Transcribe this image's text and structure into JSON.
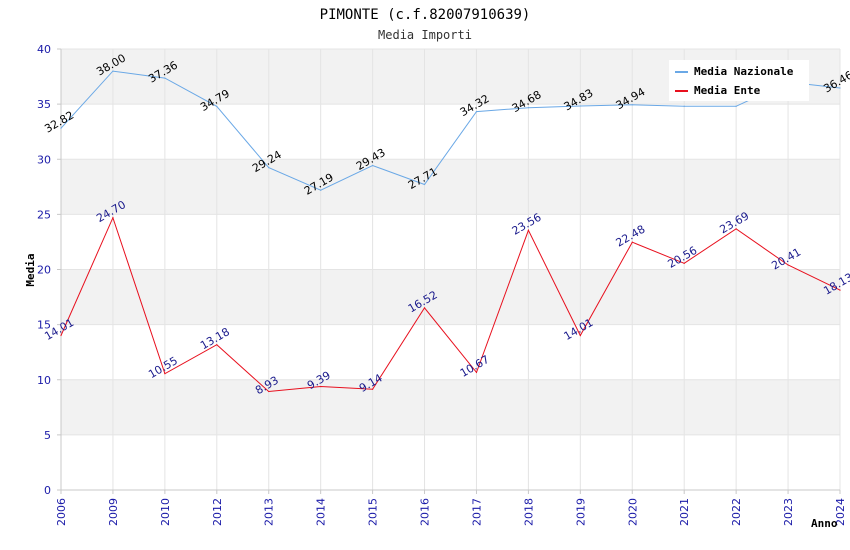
{
  "chart_data": {
    "type": "line",
    "title": "PIMONTE (c.f.82007910639)",
    "subtitle": "Media Importi",
    "xlabel": "Anno",
    "ylabel": "Media",
    "ylim": [
      0,
      40
    ],
    "yticks": [
      "0",
      "5",
      "10",
      "15",
      "20",
      "25",
      "30",
      "35",
      "40"
    ],
    "categories": [
      "2006",
      "2009",
      "2010",
      "2012",
      "2013",
      "2014",
      "2015",
      "2016",
      "2017",
      "2018",
      "2019",
      "2020",
      "2021",
      "2022",
      "2023",
      "2024"
    ],
    "series": [
      {
        "name": "Media Nazionale",
        "color": "#6aa8e6",
        "values": [
          32.82,
          38.0,
          37.36,
          34.79,
          29.24,
          27.19,
          29.43,
          27.71,
          34.32,
          34.68,
          34.83,
          34.94,
          34.8,
          34.8,
          37.0,
          36.46
        ],
        "labels": [
          "32.82",
          "38.00",
          "37.36",
          "34.79",
          "29.24",
          "27.19",
          "29.43",
          "27.71",
          "34.32",
          "34.68",
          "34.83",
          "34.94",
          "",
          "",
          "",
          "36.46"
        ]
      },
      {
        "name": "Media Ente",
        "color": "#e8101e",
        "values": [
          14.01,
          24.7,
          10.55,
          13.18,
          8.93,
          9.39,
          9.14,
          16.52,
          10.67,
          23.56,
          14.01,
          22.48,
          20.56,
          23.69,
          20.41,
          18.13
        ],
        "labels": [
          "14.01",
          "24.70",
          "10.55",
          "13.18",
          "8.93",
          "9.39",
          "9.14",
          "16.52",
          "10.67",
          "23.56",
          "14.01",
          "22.48",
          "20.56",
          "23.69",
          "20.41",
          "18.13"
        ]
      }
    ],
    "grid": true,
    "legend_position": "top-right"
  }
}
